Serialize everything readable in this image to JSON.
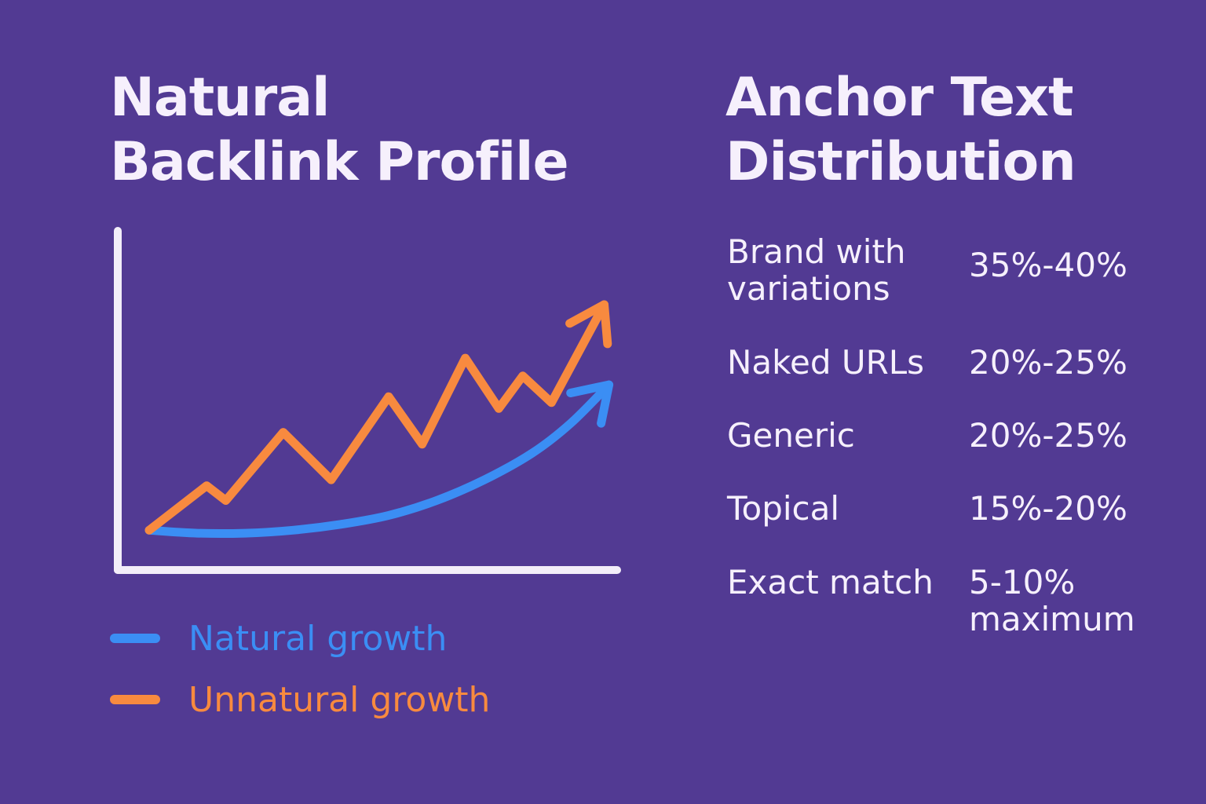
{
  "colors": {
    "background": "#523a93",
    "axis": "#f3eef9",
    "natural": "#3b8ef4",
    "unnatural": "#f88a3f",
    "text": "#f6f0fc"
  },
  "left_panel": {
    "title_line1": "Natural",
    "title_line2": "Backlink Profile"
  },
  "right_panel": {
    "title_line1": "Anchor Text",
    "title_line2": "Distribution",
    "rows": [
      {
        "label_line1": "Brand with",
        "label_line2": "variations",
        "value_line1": "35%-40%",
        "value_line2": ""
      },
      {
        "label_line1": "Naked URLs",
        "label_line2": "",
        "value_line1": "20%-25%",
        "value_line2": ""
      },
      {
        "label_line1": "Generic",
        "label_line2": "",
        "value_line1": "20%-25%",
        "value_line2": ""
      },
      {
        "label_line1": "Topical",
        "label_line2": "",
        "value_line1": "15%-20%",
        "value_line2": ""
      },
      {
        "label_line1": "Exact match",
        "label_line2": "",
        "value_line1": "5-10%",
        "value_line2": "maximum"
      }
    ]
  },
  "chart_data": {
    "type": "line",
    "title": "Natural Backlink Profile",
    "xlabel": "",
    "ylabel": "",
    "grid": false,
    "legend_position": "bottom-left",
    "xlim": [
      0,
      100
    ],
    "ylim": [
      0,
      100
    ],
    "series": [
      {
        "name": "Natural growth",
        "color": "#3b8ef4",
        "x": [
          0,
          10,
          20,
          30,
          40,
          50,
          60,
          70,
          80,
          88,
          96
        ],
        "y": [
          6,
          5,
          5,
          6,
          8,
          11,
          16,
          23,
          32,
          42,
          55
        ]
      },
      {
        "name": "Unnatural growth",
        "color": "#f88a3f",
        "x": [
          0,
          12,
          16,
          28,
          38,
          50,
          57,
          66,
          73,
          78,
          84,
          95
        ],
        "y": [
          6,
          21,
          16,
          39,
          23,
          51,
          35,
          64,
          47,
          58,
          49,
          82
        ]
      }
    ]
  }
}
